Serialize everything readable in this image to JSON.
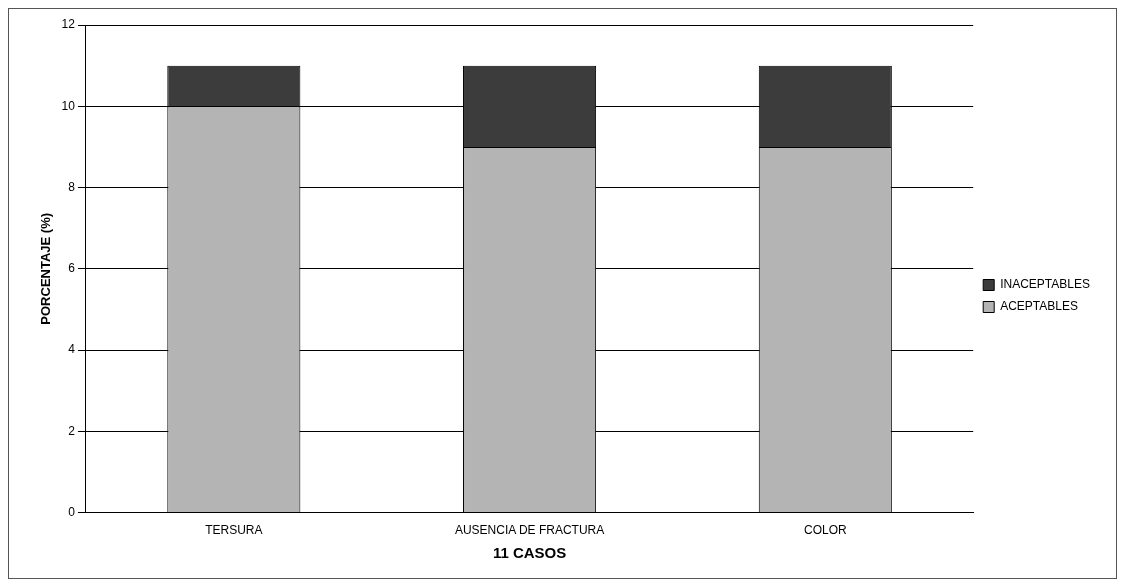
{
  "chart_data": {
    "type": "bar",
    "stacked": true,
    "xlabel": "11 CASOS",
    "ylabel": "PORCENTAJE (%)",
    "categories": [
      "TERSURA",
      "AUSENCIA DE FRACTURA",
      "COLOR"
    ],
    "series": [
      {
        "name": "ACEPTABLES",
        "color": "#b4b4b4",
        "values": [
          10,
          9,
          9
        ]
      },
      {
        "name": "INACEPTABLES",
        "color": "#3c3c3c",
        "values": [
          1,
          2,
          2
        ]
      }
    ],
    "ylim": [
      0,
      12
    ],
    "yticks": [
      0,
      2,
      4,
      6,
      8,
      10,
      12
    ],
    "grid": "y",
    "legend": "right"
  }
}
